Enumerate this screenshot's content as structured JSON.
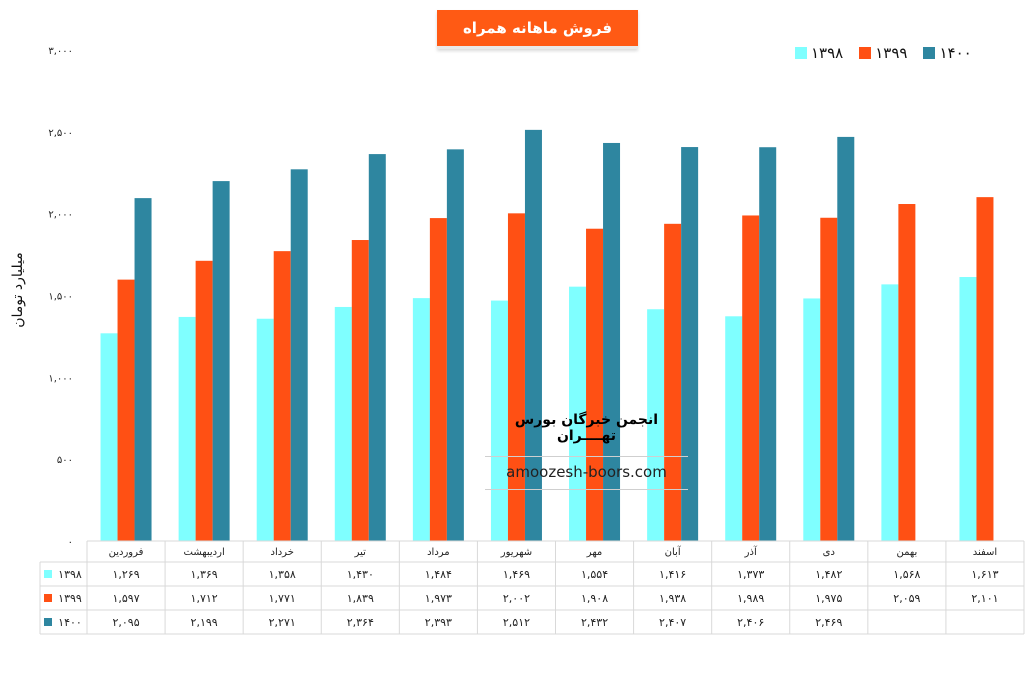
{
  "chart_data": {
    "type": "bar",
    "title": "فروش ماهانه همراه",
    "ylabel": "میلیارد تومان",
    "ylim": [
      0,
      3000
    ],
    "yticks": [
      0,
      500,
      1000,
      1500,
      2000,
      2500,
      3000
    ],
    "ytick_labels": [
      "۰",
      "۵۰۰",
      "۱,۰۰۰",
      "۱,۵۰۰",
      "۲,۰۰۰",
      "۲,۵۰۰",
      "۳,۰۰۰"
    ],
    "categories": [
      "فروردین",
      "اردیبهشت",
      "خرداد",
      "تیر",
      "مرداد",
      "شهریور",
      "مهر",
      "آبان",
      "آذر",
      "دی",
      "بهمن",
      "اسفند"
    ],
    "series": [
      {
        "name": "۱۳۹۸",
        "color": "#7FFFFF",
        "values": [
          1269,
          1369,
          1358,
          1430,
          1484,
          1469,
          1554,
          1416,
          1373,
          1482,
          1568,
          1613
        ],
        "labels": [
          "۱,۲۶۹",
          "۱,۳۶۹",
          "۱,۳۵۸",
          "۱,۴۳۰",
          "۱,۴۸۴",
          "۱,۴۶۹",
          "۱,۵۵۴",
          "۱,۴۱۶",
          "۱,۳۷۳",
          "۱,۴۸۲",
          "۱,۵۶۸",
          "۱,۶۱۳"
        ]
      },
      {
        "name": "۱۳۹۹",
        "color": "#FF5014",
        "values": [
          1597,
          1712,
          1771,
          1839,
          1973,
          2002,
          1908,
          1938,
          1989,
          1975,
          2059,
          2101
        ],
        "labels": [
          "۱,۵۹۷",
          "۱,۷۱۲",
          "۱,۷۷۱",
          "۱,۸۳۹",
          "۱,۹۷۳",
          "۲,۰۰۲",
          "۱,۹۰۸",
          "۱,۹۳۸",
          "۱,۹۸۹",
          "۱,۹۷۵",
          "۲,۰۵۹",
          "۲,۱۰۱"
        ]
      },
      {
        "name": "۱۴۰۰",
        "color": "#2E86A0",
        "values": [
          2095,
          2199,
          2271,
          2364,
          2393,
          2512,
          2432,
          2407,
          2406,
          2469,
          null,
          null
        ],
        "labels": [
          "۲,۰۹۵",
          "۲,۱۹۹",
          "۲,۲۷۱",
          "۲,۳۶۴",
          "۲,۳۹۳",
          "۲,۵۱۲",
          "۲,۴۳۲",
          "۲,۴۰۷",
          "۲,۴۰۶",
          "۲,۴۶۹",
          "",
          ""
        ]
      }
    ],
    "legend": "top-right",
    "grid": false,
    "data_table": true
  },
  "watermark": {
    "title": "انجمن خبرگان بورس تهــــران",
    "url": "amoozesh-boors.com"
  }
}
